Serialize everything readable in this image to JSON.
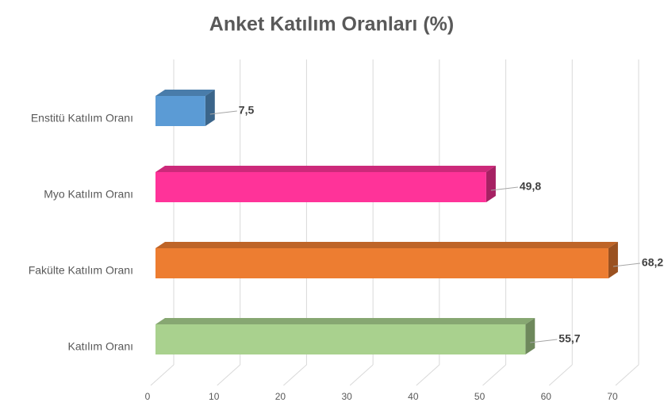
{
  "chart_data": {
    "type": "bar",
    "orientation": "horizontal",
    "title": "Anket Katılım Oranları (%)",
    "categories": [
      "Enstitü Katılım Oranı",
      "Myo Katılım Oranı",
      "Fakülte Katılım Oranı",
      "Katılım Oranı"
    ],
    "values": [
      7.5,
      49.8,
      68.2,
      55.7
    ],
    "value_labels": [
      "7,5",
      "49,8",
      "68,2",
      "55,7"
    ],
    "colors": [
      "#5b9bd5",
      "#ff3399",
      "#ed7d31",
      "#a9d18e"
    ],
    "xlim": [
      0,
      70
    ],
    "xticks": [
      0,
      10,
      20,
      30,
      40,
      50,
      60,
      70
    ],
    "grid": true
  }
}
